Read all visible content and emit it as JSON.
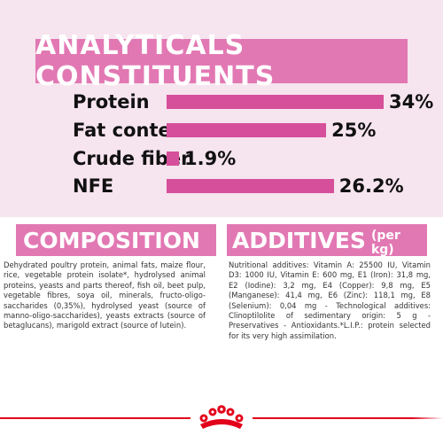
{
  "colors": {
    "top_background": "#f6e4ee",
    "banner": "#e278b3",
    "bar": "#d64f9a",
    "brand_red": "#e2001a"
  },
  "analytical": {
    "title": "ANALYTICALS CONSTITUENTS",
    "rows": [
      {
        "label": "Protein",
        "value_text": "34%",
        "value": 34
      },
      {
        "label": "Fat content",
        "value_text": "25%",
        "value": 25
      },
      {
        "label": "Crude fiber",
        "value_text": "1.9%",
        "value": 1.9
      },
      {
        "label": "NFE",
        "value_text": "26.2%",
        "value": 26.2
      }
    ],
    "scale_max": 34
  },
  "composition": {
    "title": "COMPOSITION",
    "text": "Dehydrated poultry protein, animal fats, maize flour, rice, vegetable protein isolate*, hydrolysed animal proteins, yeasts and parts thereof, fish oil, beet pulp, vegetable fibres, soya oil, minerals, fructo-oligo-saccharides (0,35%), hydrolysed yeast (source of manno-oligo-saccharides), yeasts extracts (source of betaglucans), marigold extract (source of lutein)."
  },
  "additives": {
    "title": "ADDITIVES",
    "subtitle": "(per kg)",
    "text": "Nutritional additives: Vitamin A: 25500 IU, Vitamin D3: 1000 IU, Vitamin E: 600 mg, E1 (Iron): 31,8 mg, E2 (Iodine): 3,2 mg, E4 (Copper): 9,8 mg, E5 (Manganese): 41,4 mg, E6 (Zinc): 118,1 mg, E8 (Selenium): 0,04 mg - Technological additives: Clinoptilolite of sedimentary origin: 5 g - Preservatives - Antioxidants.*L.I.P.: protein selected for its very high assimilation."
  },
  "footer": {
    "logo_icon": "royal-canin-crown-icon"
  }
}
